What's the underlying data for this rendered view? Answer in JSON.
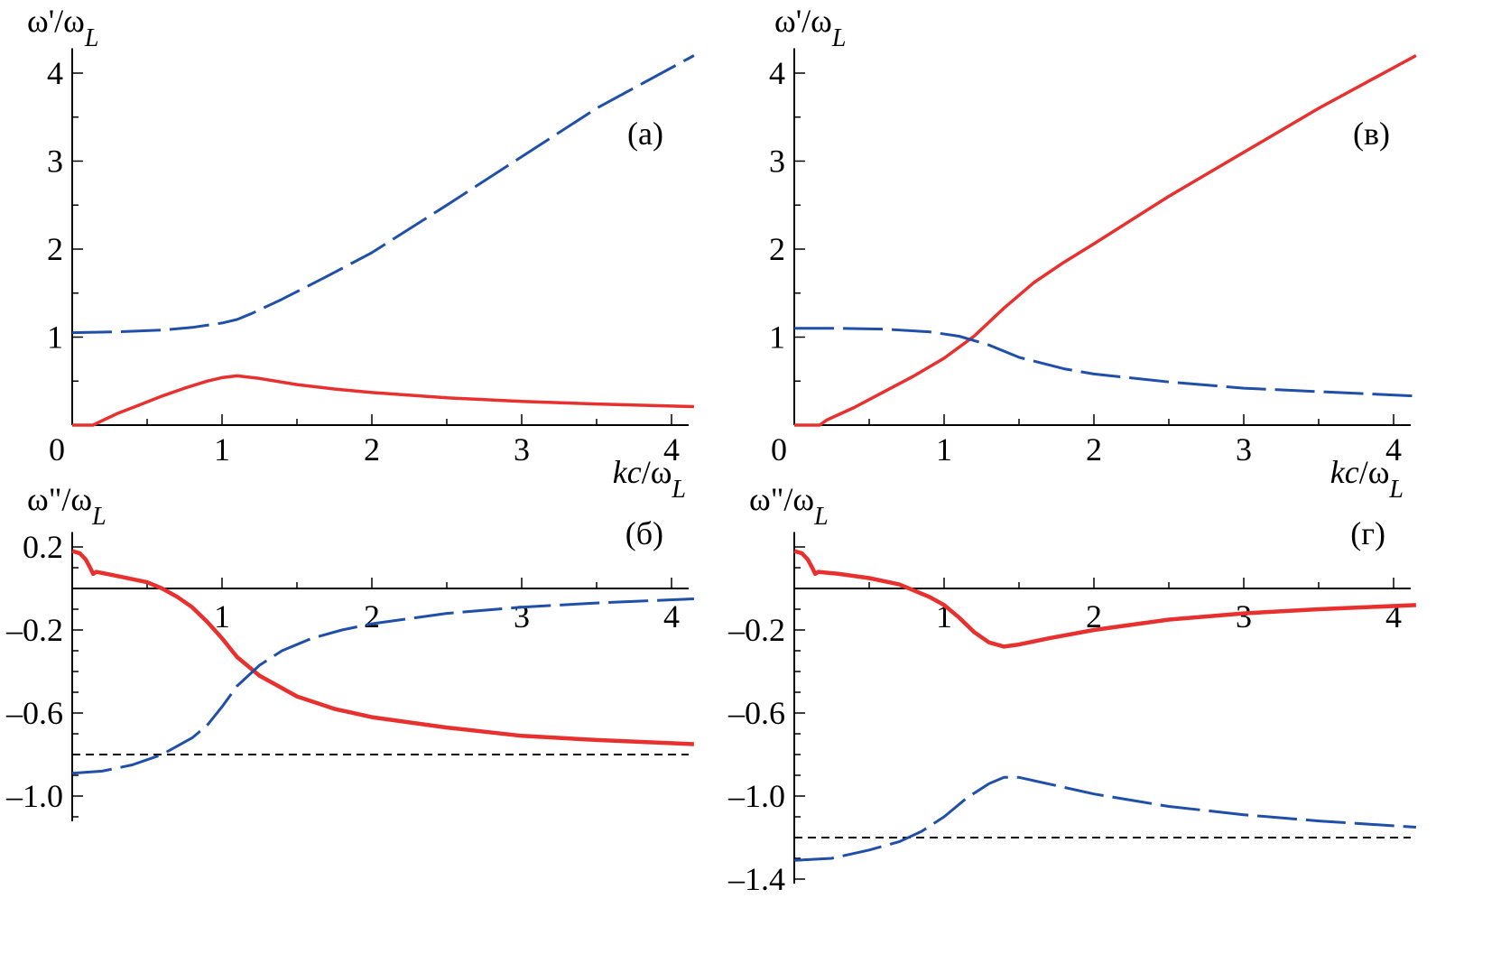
{
  "colors": {
    "red_series": "#e8302e",
    "blue_series": "#1f4fa8",
    "reference_line": "#000000"
  },
  "chart_data": [
    {
      "panel": "(a)",
      "type": "line",
      "ylabel": "ω'/ω",
      "ylabel_sub": "L",
      "xlabel": "kc/ω",
      "xlabel_sub": "L",
      "xlim": [
        0,
        4.15
      ],
      "ylim": [
        0,
        4.2
      ],
      "x_ticks": [
        0,
        1,
        2,
        3,
        4
      ],
      "y_ticks": [
        1,
        2,
        3,
        4
      ],
      "origin_label": "0",
      "series": [
        {
          "key": "red",
          "style": "solid",
          "x": [
            0,
            0.14,
            0.2,
            0.3,
            0.45,
            0.6,
            0.75,
            0.9,
            1.0,
            1.1,
            1.25,
            1.5,
            1.75,
            2.0,
            2.5,
            3.0,
            3.5,
            4.15
          ],
          "y": [
            0,
            0,
            0.05,
            0.13,
            0.23,
            0.33,
            0.42,
            0.5,
            0.54,
            0.56,
            0.53,
            0.46,
            0.41,
            0.37,
            0.31,
            0.27,
            0.24,
            0.21
          ]
        },
        {
          "key": "blue",
          "style": "dashed",
          "x": [
            0,
            0.3,
            0.6,
            0.8,
            1.0,
            1.1,
            1.2,
            1.4,
            1.7,
            2.0,
            2.5,
            3.0,
            3.5,
            4.15
          ],
          "y": [
            1.05,
            1.06,
            1.08,
            1.11,
            1.16,
            1.2,
            1.27,
            1.43,
            1.69,
            1.96,
            2.5,
            3.05,
            3.6,
            4.2
          ]
        }
      ]
    },
    {
      "panel": "(в)",
      "type": "line",
      "ylabel": "ω'/ω",
      "ylabel_sub": "L",
      "xlabel": "kc/ω",
      "xlabel_sub": "L",
      "xlim": [
        0,
        4.15
      ],
      "ylim": [
        0,
        4.2
      ],
      "x_ticks": [
        0,
        1,
        2,
        3,
        4
      ],
      "y_ticks": [
        1,
        2,
        3,
        4
      ],
      "origin_label": "0",
      "series": [
        {
          "key": "red",
          "style": "solid",
          "x": [
            0,
            0.17,
            0.22,
            0.4,
            0.6,
            0.8,
            1.0,
            1.2,
            1.4,
            1.6,
            1.8,
            2.0,
            2.5,
            3.0,
            3.5,
            4.15
          ],
          "y": [
            0,
            0,
            0.06,
            0.2,
            0.38,
            0.56,
            0.76,
            1.01,
            1.33,
            1.62,
            1.85,
            2.06,
            2.6,
            3.1,
            3.6,
            4.2
          ]
        },
        {
          "key": "blue",
          "style": "dashed",
          "x": [
            0,
            0.3,
            0.6,
            0.9,
            1.1,
            1.3,
            1.5,
            1.8,
            2.0,
            2.5,
            3.0,
            3.5,
            4.15
          ],
          "y": [
            1.1,
            1.1,
            1.09,
            1.06,
            1.01,
            0.91,
            0.77,
            0.64,
            0.58,
            0.49,
            0.42,
            0.38,
            0.33
          ]
        }
      ]
    },
    {
      "panel": "(б)",
      "type": "line",
      "ylabel": "ω\"/ω",
      "ylabel_sub": "L",
      "xlim": [
        0,
        4.15
      ],
      "ylim": [
        -1.1,
        0.25
      ],
      "x_ticks": [
        1,
        2,
        3,
        4
      ],
      "y_ticks": [
        0.2,
        -0.2,
        -0.6,
        -1.0
      ],
      "y_tick_labels": [
        "0.2",
        "–0.2",
        "–0.6",
        "–1.0"
      ],
      "reference_line_y": -0.8,
      "series": [
        {
          "key": "red",
          "style": "solid",
          "x": [
            0,
            0.05,
            0.09,
            0.12,
            0.14,
            0.16,
            0.3,
            0.5,
            0.6,
            0.7,
            0.8,
            0.9,
            1.0,
            1.1,
            1.25,
            1.5,
            1.75,
            2.0,
            2.5,
            3.0,
            3.5,
            4.15
          ],
          "y": [
            0.18,
            0.17,
            0.14,
            0.1,
            0.07,
            0.08,
            0.06,
            0.03,
            0.0,
            -0.04,
            -0.09,
            -0.16,
            -0.24,
            -0.33,
            -0.42,
            -0.52,
            -0.58,
            -0.62,
            -0.67,
            -0.71,
            -0.73,
            -0.75
          ]
        },
        {
          "key": "blue",
          "style": "dashed",
          "x": [
            0,
            0.2,
            0.4,
            0.6,
            0.8,
            0.9,
            1.0,
            1.1,
            1.25,
            1.4,
            1.6,
            1.8,
            2.0,
            2.5,
            3.0,
            3.5,
            4.15
          ],
          "y": [
            -0.89,
            -0.88,
            -0.85,
            -0.8,
            -0.72,
            -0.66,
            -0.57,
            -0.47,
            -0.37,
            -0.3,
            -0.24,
            -0.2,
            -0.17,
            -0.12,
            -0.09,
            -0.07,
            -0.05
          ]
        }
      ]
    },
    {
      "panel": "(г)",
      "type": "line",
      "ylabel": "ω\"/ω",
      "ylabel_sub": "L",
      "xlim": [
        0,
        4.15
      ],
      "ylim": [
        -1.4,
        0.25
      ],
      "x_ticks": [
        1,
        2,
        3,
        4
      ],
      "y_ticks": [
        -0.2,
        -0.6,
        -1.0,
        -1.4
      ],
      "y_tick_labels": [
        "–0.2",
        "–0.6",
        "–1.0",
        "–1.4"
      ],
      "reference_line_y": -1.2,
      "series": [
        {
          "key": "red",
          "style": "solid",
          "x": [
            0,
            0.05,
            0.09,
            0.12,
            0.14,
            0.16,
            0.3,
            0.5,
            0.7,
            0.8,
            0.9,
            1.0,
            1.1,
            1.2,
            1.3,
            1.4,
            1.5,
            1.7,
            2.0,
            2.5,
            3.0,
            3.5,
            4.15
          ],
          "y": [
            0.18,
            0.17,
            0.14,
            0.1,
            0.07,
            0.08,
            0.07,
            0.05,
            0.02,
            -0.01,
            -0.04,
            -0.08,
            -0.14,
            -0.21,
            -0.26,
            -0.28,
            -0.27,
            -0.24,
            -0.2,
            -0.15,
            -0.12,
            -0.1,
            -0.08
          ]
        },
        {
          "key": "blue",
          "style": "dashed",
          "x": [
            0,
            0.25,
            0.5,
            0.7,
            0.85,
            1.0,
            1.15,
            1.3,
            1.4,
            1.5,
            1.75,
            2.0,
            2.5,
            3.0,
            3.5,
            4.15
          ],
          "y": [
            -1.31,
            -1.3,
            -1.26,
            -1.22,
            -1.17,
            -1.1,
            -1.01,
            -0.94,
            -0.91,
            -0.91,
            -0.95,
            -0.99,
            -1.05,
            -1.09,
            -1.12,
            -1.15
          ]
        }
      ]
    }
  ]
}
